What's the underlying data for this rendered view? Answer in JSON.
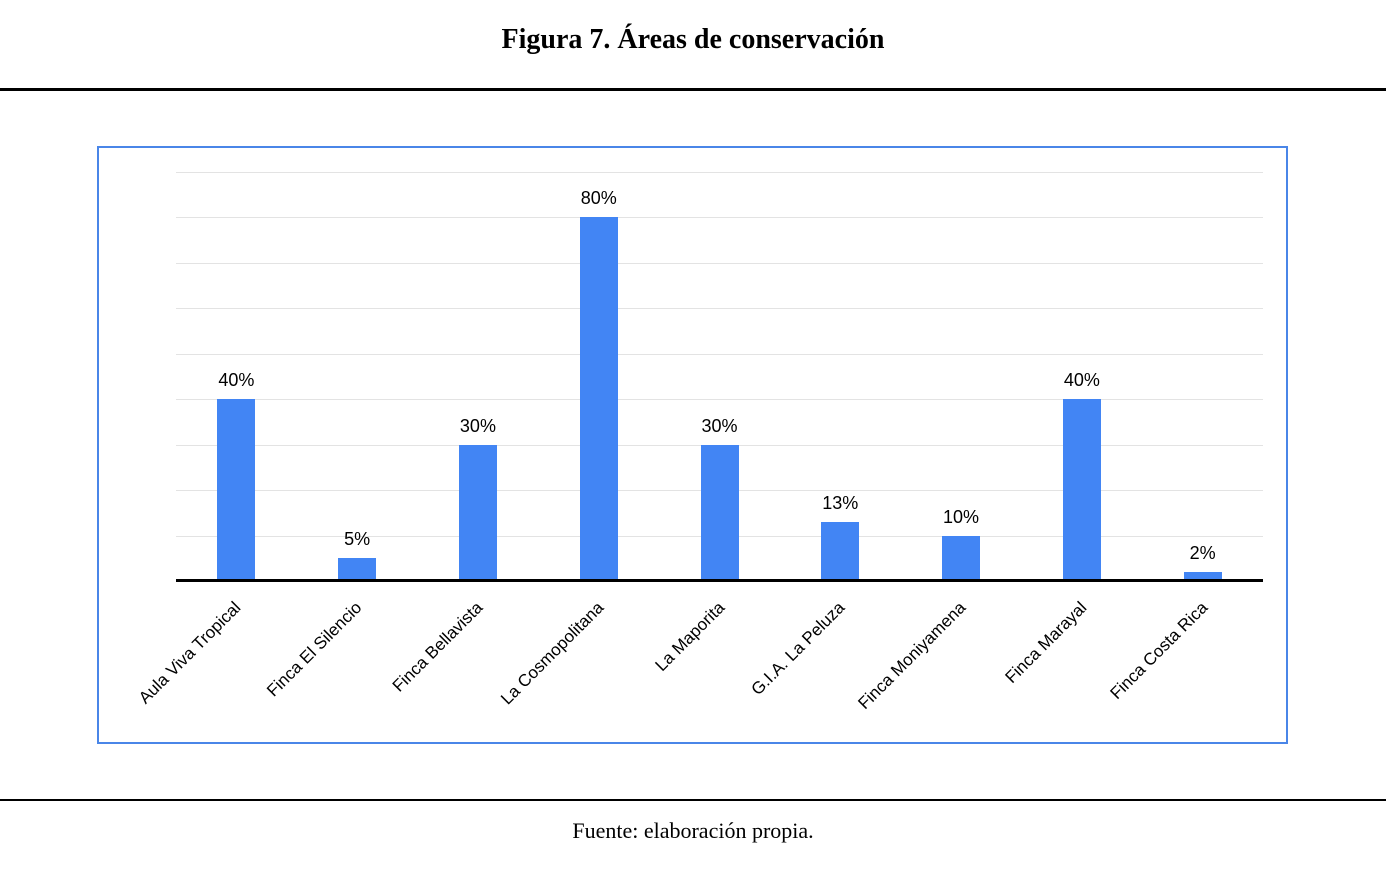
{
  "figure": {
    "title": "Figura 7. Áreas de conservación",
    "source": "Fuente: elaboración propia."
  },
  "chart_data": {
    "type": "bar",
    "title": "Figura 7. Áreas de conservación",
    "categories": [
      "Aula Viva Tropical",
      "Finca El Silencio",
      "Finca Bellavista",
      "La Cosmopolitana",
      "La Maporita",
      "G.I.A. La Peluza",
      "Finca Moniyamena",
      "Finca Marayal",
      "Finca Costa Rica"
    ],
    "values": [
      40,
      5,
      30,
      80,
      30,
      13,
      10,
      40,
      2
    ],
    "value_labels": [
      "40%",
      "5%",
      "30%",
      "80%",
      "30%",
      "13%",
      "10%",
      "40%",
      "2%"
    ],
    "xlabel": "",
    "ylabel": "",
    "ylim": [
      0,
      90
    ],
    "gridline_step": 10,
    "grid": true,
    "legend": "none",
    "bar_color": "#4285f4",
    "gridline_color": "#e3e3e3",
    "frame_border_color": "#4a86e8",
    "axis_color": "#000000"
  }
}
